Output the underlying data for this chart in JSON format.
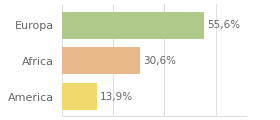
{
  "categories": [
    "Europa",
    "Africa",
    "America"
  ],
  "values": [
    55.6,
    30.6,
    13.9
  ],
  "labels": [
    "55,6%",
    "30,6%",
    "13,9%"
  ],
  "bar_colors": [
    "#aec98a",
    "#e8b98a",
    "#f2d96e"
  ],
  "xlim": [
    0,
    72
  ],
  "background_color": "#ffffff",
  "bar_height": 0.75,
  "label_fontsize": 7.5,
  "category_fontsize": 8,
  "text_color": "#666666",
  "grid_color": "#e0e0e0"
}
